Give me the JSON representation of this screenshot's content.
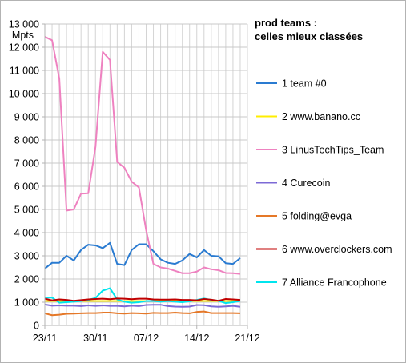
{
  "chart_data": {
    "type": "line",
    "title_lines": [
      "prod teams :",
      "celles mieux classées"
    ],
    "yunit": "Mpts",
    "ylim": [
      0,
      13000
    ],
    "yticks": [
      0,
      1000,
      2000,
      3000,
      4000,
      5000,
      6000,
      7000,
      8000,
      9000,
      10000,
      11000,
      12000,
      13000
    ],
    "ytick_labels": [
      "0",
      "1 000",
      "2 000",
      "3 000",
      "4 000",
      "5 000",
      "6 000",
      "7 000",
      "8 000",
      "9 000",
      "10 000",
      "11 000",
      "12 000",
      "13 000"
    ],
    "xlim": [
      0,
      28
    ],
    "xticks": [
      0,
      7,
      14,
      21,
      28
    ],
    "xtick_labels": [
      "23/11",
      "30/11",
      "07/12",
      "14/12",
      "21/12"
    ],
    "grid": true,
    "legend_position": "right",
    "series": [
      {
        "name": "1 team #0",
        "color": "#2a7bd1",
        "values": [
          2450,
          2700,
          2700,
          3000,
          2800,
          3250,
          3480,
          3450,
          3330,
          3560,
          2650,
          2600,
          3250,
          3500,
          3500,
          3200,
          2850,
          2700,
          2650,
          2800,
          3080,
          2930,
          3250,
          3000,
          2980,
          2680,
          2650,
          2900
        ]
      },
      {
        "name": "2 www.banano.cc",
        "color": "#ffee00",
        "values": [
          1050,
          1050,
          1050,
          1050,
          1050,
          1050,
          1050,
          1050,
          1050,
          1050,
          1050,
          1050,
          1050,
          1050,
          1050,
          1050,
          1050,
          1050,
          1050,
          1050,
          1050,
          1050,
          1050,
          1050,
          1050,
          1050,
          1050,
          1050
        ]
      },
      {
        "name": "3 LinusTechTips_Team",
        "color": "#ee82c0",
        "values": [
          12450,
          12300,
          10650,
          4950,
          5000,
          5680,
          5700,
          7700,
          11800,
          11450,
          7050,
          6800,
          6200,
          5950,
          4100,
          2650,
          2500,
          2450,
          2350,
          2250,
          2250,
          2320,
          2500,
          2420,
          2380,
          2260,
          2250,
          2220
        ]
      },
      {
        "name": "4 Curecoin",
        "color": "#7c6ad6",
        "values": [
          900,
          850,
          860,
          850,
          850,
          830,
          860,
          840,
          860,
          840,
          840,
          820,
          850,
          830,
          880,
          890,
          890,
          830,
          810,
          800,
          810,
          880,
          870,
          820,
          800,
          820,
          840,
          800
        ]
      },
      {
        "name": "5 folding@evga",
        "color": "#e57828",
        "values": [
          520,
          440,
          460,
          500,
          510,
          520,
          530,
          530,
          550,
          550,
          520,
          510,
          530,
          520,
          510,
          540,
          530,
          530,
          550,
          530,
          520,
          580,
          600,
          530,
          530,
          530,
          530,
          520
        ]
      },
      {
        "name": "6 www.overclockers.com",
        "color": "#c00000",
        "values": [
          1150,
          1080,
          1120,
          1100,
          1060,
          1090,
          1120,
          1140,
          1150,
          1130,
          1160,
          1150,
          1130,
          1150,
          1150,
          1120,
          1110,
          1110,
          1120,
          1100,
          1100,
          1080,
          1140,
          1110,
          1060,
          1140,
          1120,
          1100
        ]
      },
      {
        "name": "7 Alliance Francophone",
        "color": "#00e5ee",
        "values": [
          1200,
          1200,
          980,
          1000,
          1020,
          1050,
          1100,
          1180,
          1500,
          1600,
          1120,
          1020,
          980,
          1000,
          1050,
          1050,
          1020,
          1050,
          1020,
          1000,
          1040,
          1100,
          1160,
          1100,
          1060,
          960,
          1000,
          1050
        ]
      }
    ]
  }
}
